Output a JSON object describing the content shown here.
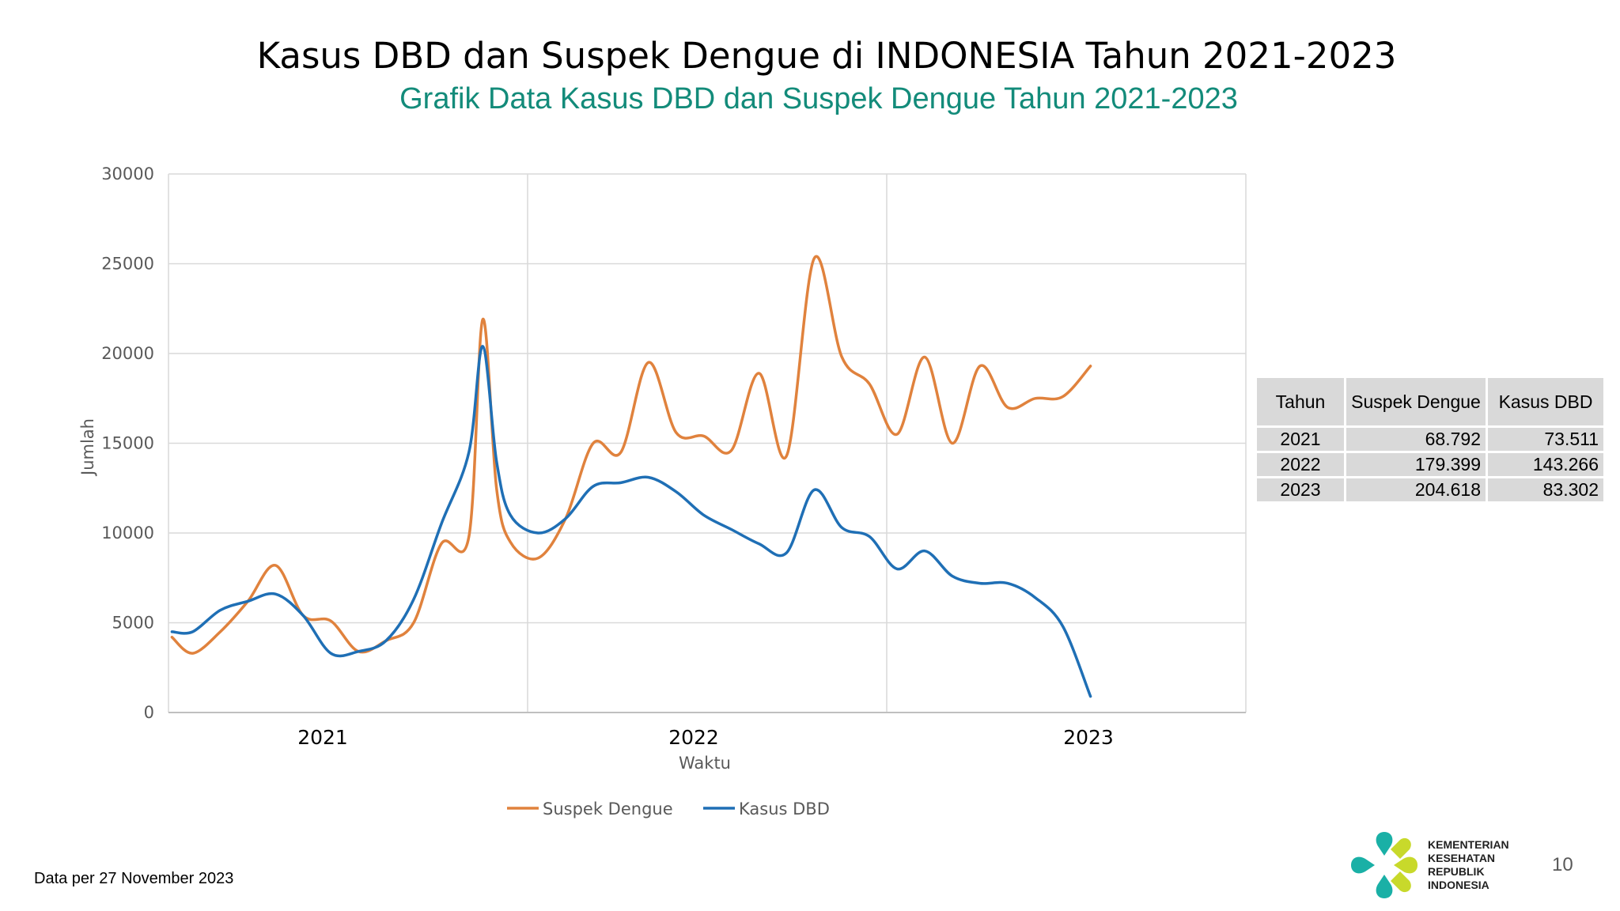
{
  "page": {
    "title": "Kasus DBD  dan Suspek Dengue di INDONESIA Tahun 2021-2023",
    "subtitle": "Grafik Data Kasus DBD dan Suspek Dengue Tahun 2021-2023",
    "footnote": "Data per  27 November 2023",
    "page_number": "10",
    "logo_text": [
      "KEMENTERIAN",
      "KESEHATAN",
      "REPUBLIK",
      "INDONESIA"
    ]
  },
  "colors": {
    "suspek": "#e0823d",
    "kasus": "#1f6fb5",
    "grid": "#d9d9d9",
    "subtitle": "#138b7a"
  },
  "chart_data": {
    "type": "line",
    "title": "",
    "xlabel": "Waktu",
    "ylabel": "Jumlah",
    "ylim": [
      0,
      30000
    ],
    "yticks": [
      0,
      5000,
      10000,
      15000,
      20000,
      25000,
      30000
    ],
    "year_groups": [
      "2021",
      "2022",
      "2023"
    ],
    "weeks_per_group": 52,
    "legend_position": "bottom",
    "grid": true,
    "series": [
      {
        "name": "Suspek Dengue",
        "color": "#e0823d",
        "points": [
          [
            1,
            4200
          ],
          [
            4,
            3300
          ],
          [
            8,
            4500
          ],
          [
            12,
            6200
          ],
          [
            16,
            8200
          ],
          [
            20,
            5400
          ],
          [
            24,
            5100
          ],
          [
            28,
            3400
          ],
          [
            32,
            4000
          ],
          [
            36,
            5000
          ],
          [
            40,
            9400
          ],
          [
            44,
            9800
          ],
          [
            46,
            21900
          ],
          [
            48,
            12500
          ],
          [
            50,
            9500
          ],
          [
            54,
            8600
          ],
          [
            58,
            10800
          ],
          [
            62,
            15000
          ],
          [
            66,
            14500
          ],
          [
            70,
            19500
          ],
          [
            74,
            15600
          ],
          [
            78,
            15400
          ],
          [
            82,
            14600
          ],
          [
            86,
            18900
          ],
          [
            90,
            14300
          ],
          [
            94,
            25300
          ],
          [
            98,
            19800
          ],
          [
            102,
            18300
          ],
          [
            106,
            15500
          ],
          [
            110,
            19800
          ],
          [
            114,
            15000
          ],
          [
            118,
            19300
          ],
          [
            122,
            17000
          ],
          [
            126,
            17500
          ],
          [
            130,
            17600
          ],
          [
            134,
            19300
          ]
        ]
      },
      {
        "name": "Kasus DBD",
        "color": "#1f6fb5",
        "points": [
          [
            1,
            4500
          ],
          [
            4,
            4500
          ],
          [
            8,
            5700
          ],
          [
            12,
            6200
          ],
          [
            16,
            6600
          ],
          [
            20,
            5400
          ],
          [
            24,
            3300
          ],
          [
            28,
            3400
          ],
          [
            32,
            4000
          ],
          [
            36,
            6300
          ],
          [
            40,
            10500
          ],
          [
            44,
            14500
          ],
          [
            46,
            20400
          ],
          [
            48,
            14000
          ],
          [
            50,
            11000
          ],
          [
            54,
            10000
          ],
          [
            58,
            10800
          ],
          [
            62,
            12600
          ],
          [
            66,
            12800
          ],
          [
            70,
            13100
          ],
          [
            74,
            12300
          ],
          [
            78,
            11000
          ],
          [
            82,
            10200
          ],
          [
            86,
            9400
          ],
          [
            90,
            8900
          ],
          [
            94,
            12400
          ],
          [
            98,
            10300
          ],
          [
            102,
            9800
          ],
          [
            106,
            8000
          ],
          [
            110,
            9000
          ],
          [
            114,
            7600
          ],
          [
            118,
            7200
          ],
          [
            122,
            7200
          ],
          [
            126,
            6400
          ],
          [
            130,
            4800
          ],
          [
            134,
            900
          ]
        ]
      }
    ]
  },
  "table": {
    "headers": [
      "Tahun",
      "Suspek Dengue",
      "Kasus DBD"
    ],
    "rows": [
      [
        "2021",
        "68.792",
        "73.511"
      ],
      [
        "2022",
        "179.399",
        "143.266"
      ],
      [
        "2023",
        "204.618",
        "83.302"
      ]
    ]
  }
}
